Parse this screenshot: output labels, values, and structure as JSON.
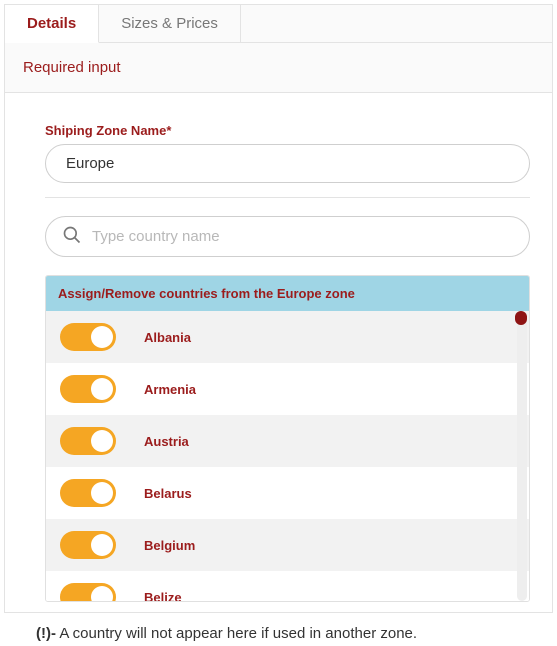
{
  "tabs": {
    "details": "Details",
    "sizes_prices": "Sizes & Prices"
  },
  "subheader": "Required input",
  "form": {
    "zone_label": "Shiping Zone Name*",
    "zone_value": "Europe",
    "search_placeholder": "Type country name"
  },
  "panel": {
    "header": "Assign/Remove countries from the Europe zone"
  },
  "countries": [
    {
      "name": "Albania",
      "on": true
    },
    {
      "name": "Armenia",
      "on": true
    },
    {
      "name": "Austria",
      "on": true
    },
    {
      "name": "Belarus",
      "on": true
    },
    {
      "name": "Belgium",
      "on": true
    },
    {
      "name": "Belize",
      "on": true
    }
  ],
  "footnote": {
    "prefix": "(!)-",
    "text": " A country will not appear here if used in another zone."
  },
  "colors": {
    "accent": "#9b1c1c",
    "toggle_on": "#f5a623",
    "panel_header_bg": "#9fd5e5",
    "row_alt_bg": "#f2f2f2",
    "border": "#e3e3e3",
    "scroll_thumb": "#8e1414"
  }
}
